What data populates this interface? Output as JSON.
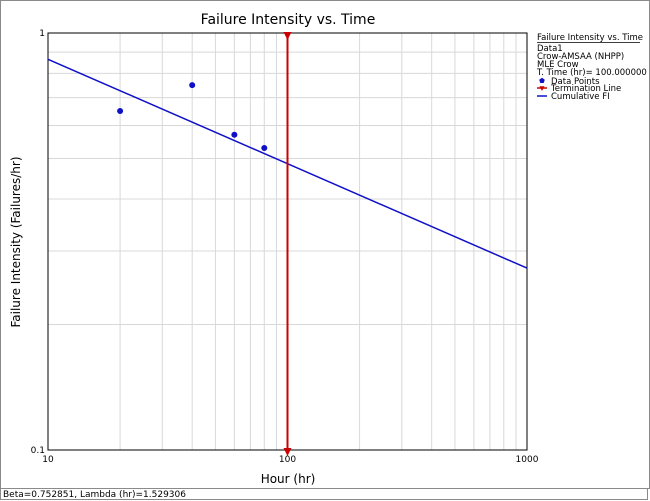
{
  "chart_data": {
    "type": "scatter",
    "title": "Failure Intensity vs. Time",
    "xlabel": "Hour (hr)",
    "ylabel": "Failure Intensity (Failures/hr)",
    "x_scale": "log",
    "y_scale": "log",
    "xlim": [
      10,
      1000
    ],
    "ylim": [
      0.1,
      1
    ],
    "x_ticks": [
      "10",
      "100",
      "1000"
    ],
    "y_ticks": [
      "1",
      "0.1"
    ],
    "grid": true,
    "legend_position": "right",
    "legend": {
      "header": "Failure Intensity vs. Time",
      "lines": [
        "Data1",
        "Crow-AMSAA (NHPP)",
        "MLE Crow",
        "T. Time (hr)= 100.000000"
      ],
      "entries": [
        {
          "name": "Data Points",
          "symbol": "point",
          "color": "#1010c8"
        },
        {
          "name": "Termination Line",
          "symbol": "termination",
          "color": "#cc0000"
        },
        {
          "name": "Cumulative FI",
          "symbol": "line",
          "color": "#1010c8"
        }
      ]
    },
    "series": [
      {
        "name": "Data Points",
        "kind": "points",
        "color": "#1010c8",
        "x": [
          20,
          40,
          60,
          80
        ],
        "y": [
          0.65,
          0.75,
          0.57,
          0.53
        ]
      },
      {
        "name": "Cumulative FI",
        "kind": "line",
        "color": "#1010c8",
        "x": [
          10,
          1000
        ],
        "y": [
          0.865,
          0.273
        ]
      }
    ],
    "termination": {
      "name": "Termination Line",
      "x": 100,
      "color": "#cc0000"
    },
    "footer": "Beta=0.752851, Lambda (hr)=1.529306"
  }
}
